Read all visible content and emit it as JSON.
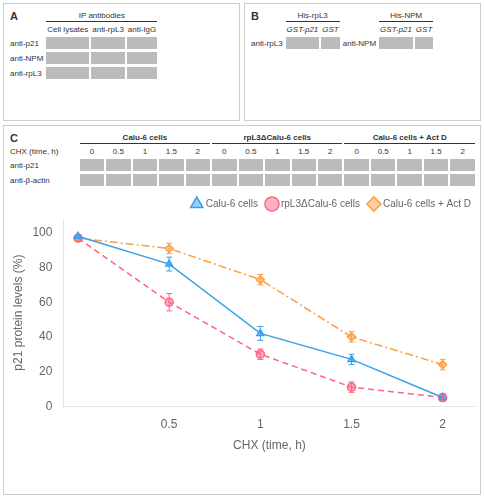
{
  "chart_data": {
    "type": "line",
    "xlabel": "CHX (time, h)",
    "ylabel": "p21 protein levels (%)",
    "x": [
      0,
      0.5,
      1,
      1.5,
      2
    ],
    "series": [
      {
        "name": "Calu-6 cells",
        "values": [
          98,
          82,
          42,
          27,
          5
        ],
        "errors": [
          0,
          4,
          4,
          3,
          2
        ],
        "marker": "triangle",
        "line_style": "solid"
      },
      {
        "name": "rpL3ΔCalu-6 cells",
        "values": [
          97,
          60,
          30,
          11,
          5
        ],
        "errors": [
          0,
          5,
          3,
          3,
          2
        ],
        "marker": "circle",
        "line_style": "dashed"
      },
      {
        "name": "Calu-6 cells + Act D",
        "values": [
          97,
          91,
          73,
          40,
          24
        ],
        "errors": [
          0,
          3,
          3,
          3,
          3
        ],
        "marker": "diamond",
        "line_style": "dashdot"
      }
    ],
    "xlim": [
      -0.08,
      2.18
    ],
    "xticks": [
      0.5,
      1,
      1.5,
      2
    ],
    "ylim": [
      0,
      108
    ],
    "yticks": [
      0,
      20,
      40,
      60,
      80,
      100
    ],
    "grid": false,
    "legend": "upper right",
    "annotations": [
      "A",
      "IP antibodies",
      "Cell lysates",
      "anti-rpL3",
      "anti-IgG",
      "anti-p21",
      "anti-NPM",
      "anti-rpL3",
      "B",
      "His-rpL3",
      "His-NPM",
      "GST-p21",
      "GST",
      "GST-p21",
      "GST",
      "anti-rpL3",
      "anti-NPM",
      "C",
      "Calu-6 cells",
      "rpL3ΔCalu-6 cells",
      "Calu-6 cells + Act D",
      "CHX (time, h)",
      "0",
      "0.5",
      "1",
      "1.5",
      "2",
      "0",
      "0.5",
      "1",
      "1.5",
      "2",
      "0",
      "0.5",
      "1",
      "1.5",
      "2",
      "anti-p21",
      "anti-β-actin"
    ]
  }
}
